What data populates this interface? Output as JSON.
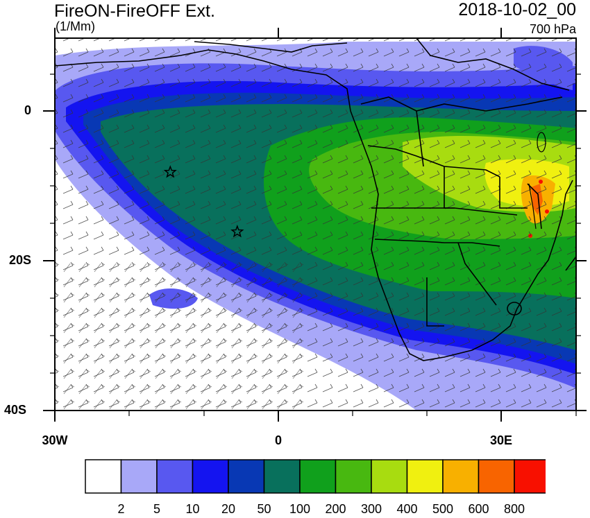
{
  "header": {
    "title": "FireON-FireOFF Ext.",
    "units": "(1/Mm)",
    "datetime": "2018-10-02_00",
    "level": "700 hPa"
  },
  "axes": {
    "y_ticks": [
      "0",
      "20S",
      "40S"
    ],
    "x_ticks": [
      "30W",
      "0",
      "30E"
    ]
  },
  "colorbar": {
    "labels": [
      "2",
      "5",
      "10",
      "20",
      "50",
      "100",
      "200",
      "300",
      "400",
      "500",
      "600",
      "800"
    ],
    "colors": [
      "#ffffff",
      "#a8a8f8",
      "#5858f0",
      "#1414f0",
      "#0838b4",
      "#08705c",
      "#10a01c",
      "#48b810",
      "#a8dc10",
      "#f0f010",
      "#f8b000",
      "#f86400",
      "#f81000"
    ]
  },
  "markers": [
    {
      "name": "star-1",
      "lon": -14.5,
      "lat": -8
    },
    {
      "name": "star-2",
      "lon": -5.5,
      "lat": -16
    }
  ],
  "map_extent": {
    "lon": [
      -30,
      40
    ],
    "lat": [
      -40,
      10
    ]
  }
}
